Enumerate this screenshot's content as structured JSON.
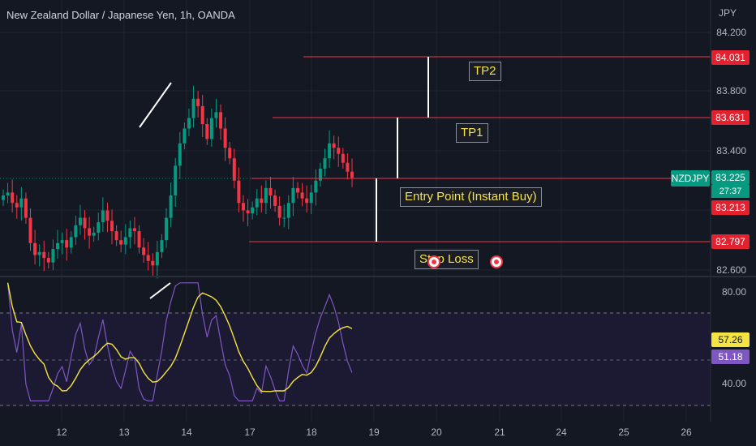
{
  "header": {
    "title": "New Zealand Dollar / Japanese Yen, 1h, OANDA"
  },
  "price_axis": {
    "currency": "JPY",
    "ticks": [
      "84.200",
      "83.800",
      "83.400",
      "82.600"
    ]
  },
  "rsi_axis": {
    "ticks": [
      "80.00",
      "40.00"
    ]
  },
  "price_tags": {
    "tp2": "84.031",
    "tp1": "83.631",
    "symbol": "NZDJPY",
    "last": "83.225",
    "countdown": "27:37",
    "entry": "83.213",
    "stop": "82.797",
    "rsi_ma": "57.26",
    "rsi": "51.18"
  },
  "annotations": {
    "tp2": "TP2",
    "tp1": "TP1",
    "entry": "Entry Point (Instant Buy)",
    "stop": "Stop Loss"
  },
  "time_axis": {
    "ticks": [
      "12",
      "13",
      "14",
      "17",
      "18",
      "19",
      "20",
      "21",
      "24",
      "25",
      "26"
    ]
  },
  "colors": {
    "background": "#141823",
    "bull": "#089981",
    "bear": "#f23645",
    "level_line": "#f23645",
    "rsi": "#7e57c2",
    "rsi_ma": "#f5e342",
    "label_text": "#f5e342"
  },
  "chart_data": [
    {
      "type": "candlestick",
      "symbol": "NZDJPY",
      "timeframe": "1h",
      "y_unit": "JPY",
      "levels": [
        {
          "name": "TP2",
          "value": 84.031
        },
        {
          "name": "TP1",
          "value": 83.631
        },
        {
          "name": "Entry Point (Instant Buy)",
          "value": 83.213
        },
        {
          "name": "Stop Loss",
          "value": 82.797
        }
      ],
      "last_price": 83.225,
      "ylim": [
        82.55,
        84.25
      ],
      "closes": [
        83.1,
        83.12,
        83.05,
        83.02,
        83.08,
        82.95,
        82.78,
        82.7,
        82.72,
        82.68,
        82.65,
        82.74,
        82.78,
        82.8,
        82.75,
        82.82,
        82.9,
        82.95,
        82.88,
        82.83,
        82.85,
        82.92,
        83.0,
        82.93,
        82.86,
        82.8,
        82.77,
        82.82,
        82.88,
        82.86,
        82.75,
        82.7,
        82.66,
        82.63,
        82.72,
        82.8,
        82.95,
        83.1,
        83.3,
        83.45,
        83.55,
        83.62,
        83.75,
        83.7,
        83.58,
        83.48,
        83.62,
        83.66,
        83.55,
        83.42,
        83.35,
        83.2,
        83.05,
        83.0,
        82.98,
        83.02,
        83.08,
        83.05,
        83.15,
        83.1,
        83.03,
        82.95,
        82.95,
        83.05,
        83.15,
        83.12,
        83.08,
        83.05,
        83.12,
        83.2,
        83.28,
        83.35,
        83.45,
        83.42,
        83.38,
        83.32,
        83.26,
        83.22
      ]
    },
    {
      "type": "line",
      "name": "RSI",
      "ylim": [
        30,
        85
      ],
      "ticks": [
        80.0,
        40.0
      ],
      "current": 51.18,
      "ma_current": 57.26
    }
  ]
}
